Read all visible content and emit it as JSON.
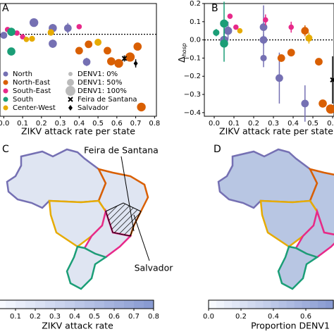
{
  "chart_data": [
    {
      "type": "scatter",
      "label": "A",
      "xlabel": "ZIKV attack rate per state",
      "xlim": [
        -0.02,
        0.81
      ],
      "ylim": [
        -0.4,
        0.15
      ],
      "refline": 0,
      "xticks": [
        {
          "value": 0,
          "label": "0.0"
        },
        0.1,
        0.2,
        0.3,
        0.4,
        0.5,
        0.6,
        0.7,
        0.8
      ],
      "series": [
        {
          "name": "North",
          "color": "#7570b3",
          "x": [
            0.16,
            0.26,
            0.34,
            0.26,
            0.44,
            0.0
          ],
          "values": [
            0.057,
            0.03,
            0.03,
            -0.046,
            -0.135,
            -0.005
          ],
          "err": [
            null,
            0.02,
            0.025,
            0.02,
            0.02,
            null
          ],
          "size": [
            80,
            70,
            60,
            70,
            60,
            50
          ]
        },
        {
          "name": "North-East",
          "color": "#d95f02",
          "x": [
            0.4,
            0.45,
            0.55,
            0.57,
            0.61,
            0.71,
            0.67,
            0.73
          ],
          "values": [
            -0.08,
            -0.049,
            -0.08,
            -0.132,
            -0.142,
            -0.06,
            -0.111,
            -0.355
          ],
          "err": [
            null,
            null,
            null,
            null,
            null,
            null,
            null,
            null
          ],
          "size": [
            60,
            60,
            60,
            70,
            80,
            70,
            90,
            80
          ]
        },
        {
          "name": "South-East",
          "color": "#e7298a",
          "x": [
            0.02,
            0.07,
            0.1,
            0.4
          ],
          "values": [
            0.023,
            0.006,
            -0.012,
            0.037
          ],
          "err": [
            null,
            null,
            null,
            null
          ],
          "size": [
            20,
            20,
            20,
            20
          ]
        },
        {
          "name": "South",
          "color": "#1b9e77",
          "x": [
            0.04,
            0.04
          ],
          "values": [
            0.012,
            -0.084
          ],
          "err": [
            0.02,
            null
          ],
          "size": [
            70,
            70
          ]
        },
        {
          "name": "Center-West",
          "color": "#e6ab02",
          "x": [
            0.12,
            0.15,
            0.25,
            0.5
          ],
          "values": [
            -0.025,
            -0.022,
            0.009,
            -0.039
          ],
          "err": [
            null,
            null,
            null,
            null
          ],
          "size": [
            20,
            30,
            40,
            50
          ]
        },
        {
          "name": "Feira de Santana",
          "color": "#000000",
          "marker": "x",
          "x": [
            0.64
          ],
          "values": [
            -0.118
          ],
          "err": [
            0.015
          ],
          "size": [
            0
          ]
        },
        {
          "name": "Salvador",
          "color": "#000000",
          "marker": "diamond",
          "x": [
            0.7
          ],
          "values": [
            -0.142
          ],
          "err": [
            0.02
          ],
          "size": [
            0
          ]
        }
      ],
      "size_legend": [
        {
          "label": "DENV1: 0%",
          "value": 0
        },
        {
          "label": "DENV1: 50%",
          "value": 50
        },
        {
          "label": "DENV1: 100%",
          "value": 100
        }
      ]
    },
    {
      "type": "scatter",
      "label": "B",
      "xlabel": "ZIKV attack rate per state",
      "ylabel": "Δ",
      "ylabel_sub": "hosp",
      "xlim": [
        -0.05,
        0.607
      ],
      "ylim": [
        -0.42,
        0.2
      ],
      "refline": 0,
      "xticks": [
        {
          "value": 0,
          "label": "0.0"
        },
        0.1,
        0.2,
        0.3,
        0.4,
        0.5,
        0.6
      ],
      "yticks": [
        0.2,
        0.1,
        {
          "value": 0,
          "label": "0.0"
        },
        {
          "value": -0.1,
          "label": "−0.1"
        },
        {
          "value": -0.2,
          "label": "−0.2"
        },
        {
          "value": -0.3,
          "label": "−0.3"
        },
        {
          "value": -0.4,
          "label": "−0.4"
        }
      ],
      "series": [
        {
          "color": "#7570b3",
          "x": [
            0.05,
            0.07,
            0.25,
            0.25,
            0.25,
            0.33,
            0.46
          ],
          "values": [
            0.0,
            0.05,
            0.07,
            0.0,
            -0.1,
            -0.21,
            -0.35
          ],
          "err": [
            0.04,
            0.05,
            0.12,
            0.03,
            0.05,
            0.14,
            0.1
          ],
          "size": [
            70,
            70,
            60,
            60,
            40,
            60,
            60
          ]
        },
        {
          "color": "#d95f02",
          "x": [
            0.34,
            0.39,
            0.46,
            0.53,
            0.55,
            0.59
          ],
          "values": [
            -0.1,
            -0.07,
            0.05,
            -0.12,
            -0.35,
            -0.38
          ],
          "err": [
            0.02,
            0.02,
            0.03,
            null,
            0.02,
            null
          ],
          "size": [
            60,
            60,
            60,
            60,
            70,
            90
          ]
        },
        {
          "color": "#e7298a",
          "x": [
            0.08,
            0.11,
            0.26,
            0.39
          ],
          "values": [
            0.13,
            0.07,
            0.11,
            0.07
          ],
          "err": [
            null,
            null,
            0.03,
            0.03
          ],
          "size": [
            20,
            20,
            20,
            20
          ]
        },
        {
          "color": "#1b9e77",
          "x": [
            0.01,
            0.05,
            0.05
          ],
          "values": [
            0.04,
            0.09,
            -0.02
          ],
          "err": [
            0.02,
            0.12,
            0.1
          ],
          "size": [
            40,
            70,
            70
          ]
        },
        {
          "color": "#e6ab02",
          "x": [
            0.13,
            0.48
          ],
          "values": [
            0.05,
            0.01
          ],
          "err": [
            null,
            0.03
          ],
          "size": [
            20,
            50
          ]
        },
        {
          "color": "#000000",
          "marker": "x",
          "x": [
            0.6
          ],
          "values": [
            -0.22
          ],
          "err": [
            0.13
          ],
          "size": [
            0
          ]
        }
      ]
    },
    {
      "type": "map",
      "label": "C",
      "annotations": [
        "Feira de Santana",
        "Salvador"
      ],
      "colorbar": {
        "label": "ZIKV attack rate",
        "lim": [
          0,
          0.8
        ],
        "ticks": [
          0.1,
          0.2,
          0.3,
          0.4,
          0.5,
          0.6,
          0.7,
          0.8
        ]
      }
    },
    {
      "type": "map",
      "label": "D",
      "colorbar": {
        "label": "Proportion DENV1",
        "lim": [
          0,
          0.77
        ],
        "ticks": [
          {
            "value": 0,
            "label": "0.0"
          },
          0.2,
          0.4,
          0.6
        ]
      }
    }
  ]
}
